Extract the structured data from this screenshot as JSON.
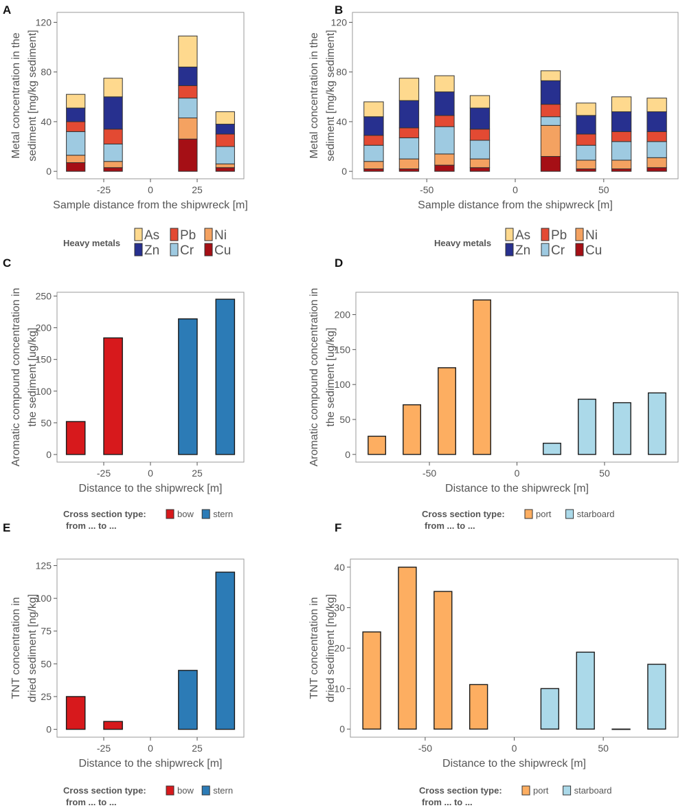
{
  "chart_data": [
    {
      "panel": "A",
      "type": "bar",
      "stacked": true,
      "xlabel": "Sample distance from the shipwreck [m]",
      "ylabel": "Metal concentration in the sediment [mg/kg sediment]",
      "xlim": [
        -50,
        50
      ],
      "xticks": [
        -25,
        0,
        25
      ],
      "ylim": [
        -6,
        128
      ],
      "yticks": [
        0,
        40,
        80,
        120
      ],
      "bar_width": 10,
      "x": [
        -40,
        -20,
        20,
        40
      ],
      "series": [
        {
          "name": "Cu",
          "color": "#a50f15",
          "values": [
            7,
            3,
            26,
            3
          ]
        },
        {
          "name": "Ni",
          "color": "#f4a261",
          "values": [
            6,
            5,
            17,
            3
          ]
        },
        {
          "name": "Cr",
          "color": "#9ecae1",
          "values": [
            19,
            14,
            16,
            14
          ]
        },
        {
          "name": "Pb",
          "color": "#e34a33",
          "values": [
            8,
            12,
            10,
            10
          ]
        },
        {
          "name": "Zn",
          "color": "#27308f",
          "values": [
            11,
            26,
            15,
            8
          ]
        },
        {
          "name": "As",
          "color": "#fed98e",
          "values": [
            11,
            15,
            25,
            10
          ]
        }
      ],
      "legend": {
        "title": "Heavy metals",
        "placement": "bottom",
        "rows": [
          [
            "As",
            "Pb",
            "Ni"
          ],
          [
            "Zn",
            "Cr",
            "Cu"
          ]
        ]
      },
      "grid": false
    },
    {
      "panel": "B",
      "type": "bar",
      "stacked": true,
      "xlabel": "Sample distance from the shipwreck [m]",
      "ylabel": "Metal concentration in the sediment [mg/kg sediment]",
      "xlim": [
        -92,
        92
      ],
      "xticks": [
        -50,
        0,
        50
      ],
      "ylim": [
        -6,
        128
      ],
      "yticks": [
        0,
        40,
        80,
        120
      ],
      "bar_width": 11,
      "x": [
        -80,
        -60,
        -40,
        -20,
        20,
        40,
        60,
        80
      ],
      "series": [
        {
          "name": "Cu",
          "color": "#a50f15",
          "values": [
            2,
            2,
            5,
            3,
            12,
            2,
            2,
            3
          ]
        },
        {
          "name": "Ni",
          "color": "#f4a261",
          "values": [
            6,
            8,
            9,
            7,
            25,
            7,
            7,
            8
          ]
        },
        {
          "name": "Cr",
          "color": "#9ecae1",
          "values": [
            13,
            17,
            22,
            15,
            7,
            12,
            15,
            13
          ]
        },
        {
          "name": "Pb",
          "color": "#e34a33",
          "values": [
            8,
            8,
            9,
            9,
            10,
            9,
            8,
            8
          ]
        },
        {
          "name": "Zn",
          "color": "#27308f",
          "values": [
            15,
            22,
            19,
            17,
            19,
            15,
            16,
            16
          ]
        },
        {
          "name": "As",
          "color": "#fed98e",
          "values": [
            12,
            18,
            13,
            10,
            8,
            10,
            12,
            11
          ]
        }
      ],
      "legend": {
        "title": "Heavy metals",
        "placement": "bottom",
        "rows": [
          [
            "As",
            "Pb",
            "Ni"
          ],
          [
            "Zn",
            "Cr",
            "Cu"
          ]
        ]
      },
      "grid": false
    },
    {
      "panel": "C",
      "type": "bar",
      "xlabel": "Distance to the shipwreck [m]",
      "ylabel": "Aromatic compound concentration in the sediment [ug/kg]",
      "xlim": [
        -50,
        50
      ],
      "xticks": [
        -25,
        0,
        25
      ],
      "ylim": [
        -12,
        256
      ],
      "yticks": [
        0,
        50,
        100,
        150,
        200,
        250
      ],
      "bar_width": 10,
      "x": [
        -40,
        -20,
        20,
        40
      ],
      "values": [
        52,
        184,
        214,
        245
      ],
      "groups": [
        "bow",
        "bow",
        "stern",
        "stern"
      ],
      "group_colors": {
        "bow": "#d7191c",
        "stern": "#2c7bb6"
      },
      "legend": {
        "title": "Cross section type:",
        "subtitle": "from ... to ...",
        "entries": [
          "bow",
          "stern"
        ],
        "placement": "bottom"
      },
      "grid": false
    },
    {
      "panel": "D",
      "type": "bar",
      "xlabel": "Distance to the shipwreck [m]",
      "ylabel": "Aromatic compound concentration in the sediment [ug/kg]",
      "xlim": [
        -92,
        92
      ],
      "xticks": [
        -50,
        0,
        50
      ],
      "ylim": [
        -11,
        232
      ],
      "yticks": [
        0,
        50,
        100,
        150,
        200
      ],
      "bar_width": 10,
      "x": [
        -80,
        -60,
        -40,
        -20,
        20,
        40,
        60,
        80
      ],
      "values": [
        26,
        71,
        124,
        221,
        16,
        79,
        74,
        88
      ],
      "groups": [
        "port",
        "port",
        "port",
        "port",
        "starboard",
        "starboard",
        "starboard",
        "starboard"
      ],
      "group_colors": {
        "port": "#fdae61",
        "starboard": "#abd9e9"
      },
      "legend": {
        "title": "Cross section type:",
        "subtitle": "from ... to ...",
        "entries": [
          "port",
          "starboard"
        ],
        "placement": "bottom"
      },
      "grid": false
    },
    {
      "panel": "E",
      "type": "bar",
      "xlabel": "Distance to the shipwreck [m]",
      "ylabel": "TNT concentration in dried sediment [ng/kg]",
      "xlim": [
        -50,
        50
      ],
      "xticks": [
        -25,
        0,
        25
      ],
      "ylim": [
        -6,
        130
      ],
      "yticks": [
        0,
        25,
        50,
        75,
        100,
        125
      ],
      "bar_width": 10,
      "x": [
        -40,
        -20,
        20,
        40
      ],
      "values": [
        25,
        6,
        45,
        120
      ],
      "groups": [
        "bow",
        "bow",
        "stern",
        "stern"
      ],
      "group_colors": {
        "bow": "#d7191c",
        "stern": "#2c7bb6"
      },
      "legend": {
        "title": "Cross section type:",
        "subtitle": "from ... to ...",
        "entries": [
          "bow",
          "stern"
        ],
        "placement": "bottom"
      },
      "grid": false
    },
    {
      "panel": "F",
      "type": "bar",
      "xlabel": "Distance to the shipwreck [m]",
      "ylabel": "TNT concentration in dried sediment [ng/kg]",
      "xlim": [
        -92,
        92
      ],
      "xticks": [
        -50,
        0,
        50
      ],
      "ylim": [
        -2,
        42
      ],
      "yticks": [
        0,
        10,
        20,
        30,
        40
      ],
      "bar_width": 10,
      "x": [
        -80,
        -60,
        -40,
        -20,
        20,
        40,
        60,
        80
      ],
      "values": [
        24,
        40,
        34,
        11,
        10,
        19,
        0,
        16
      ],
      "groups": [
        "port",
        "port",
        "port",
        "port",
        "starboard",
        "starboard",
        "starboard",
        "starboard"
      ],
      "group_colors": {
        "port": "#fdae61",
        "starboard": "#abd9e9"
      },
      "legend": {
        "title": "Cross section type:",
        "subtitle": "from ... to ...",
        "entries": [
          "port",
          "starboard"
        ],
        "placement": "bottom"
      },
      "grid": false
    }
  ]
}
